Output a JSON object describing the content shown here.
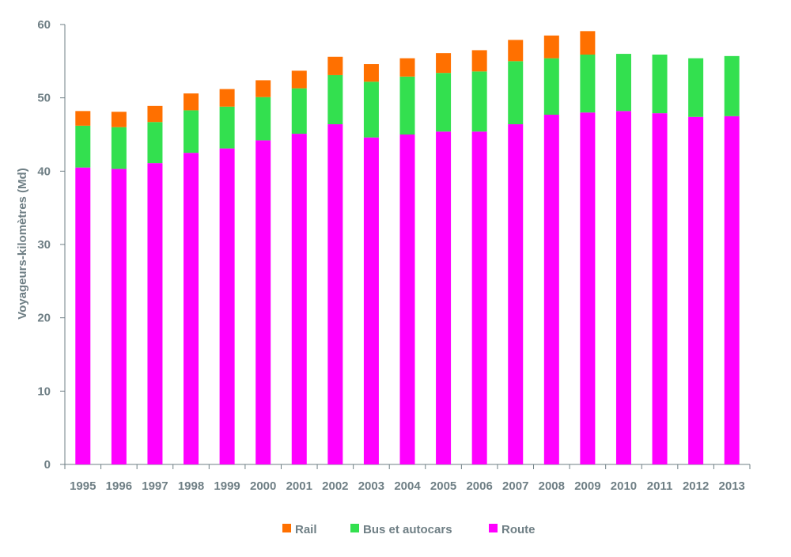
{
  "chart_data": {
    "type": "bar",
    "stacked": true,
    "title": "",
    "xlabel": "",
    "ylabel": "Voyageurs-kilomètres (Md)",
    "ylim": [
      0,
      60
    ],
    "yticks": [
      0,
      10,
      20,
      30,
      40,
      50,
      60
    ],
    "grid": false,
    "legend_position": "bottom",
    "categories": [
      "1995",
      "1996",
      "1997",
      "1998",
      "1999",
      "2000",
      "2001",
      "2002",
      "2003",
      "2004",
      "2005",
      "2006",
      "2007",
      "2008",
      "2009",
      "2010",
      "2011",
      "2012",
      "2013"
    ],
    "series": [
      {
        "name": "Route",
        "color": "#ff00ff",
        "values": [
          40.5,
          40.3,
          41.1,
          42.5,
          43.1,
          44.2,
          45.1,
          46.4,
          44.6,
          45.0,
          45.4,
          45.4,
          46.4,
          47.7,
          48.0,
          48.2,
          47.9,
          47.4,
          47.5
        ]
      },
      {
        "name": "Bus et autocars",
        "color": "#33e04f",
        "values": [
          5.7,
          5.7,
          5.6,
          5.8,
          5.7,
          5.9,
          6.2,
          6.7,
          7.6,
          7.9,
          8.0,
          8.2,
          8.6,
          7.7,
          7.9,
          7.8,
          8.0,
          8.0,
          8.2
        ]
      },
      {
        "name": "Rail",
        "color": "#ff7000",
        "values": [
          2.0,
          2.1,
          2.2,
          2.3,
          2.4,
          2.3,
          2.4,
          2.5,
          2.4,
          2.5,
          2.7,
          2.9,
          2.9,
          3.1,
          3.2,
          0,
          0,
          0,
          0
        ]
      }
    ],
    "legend_order": [
      "Rail",
      "Bus et autocars",
      "Route"
    ]
  }
}
